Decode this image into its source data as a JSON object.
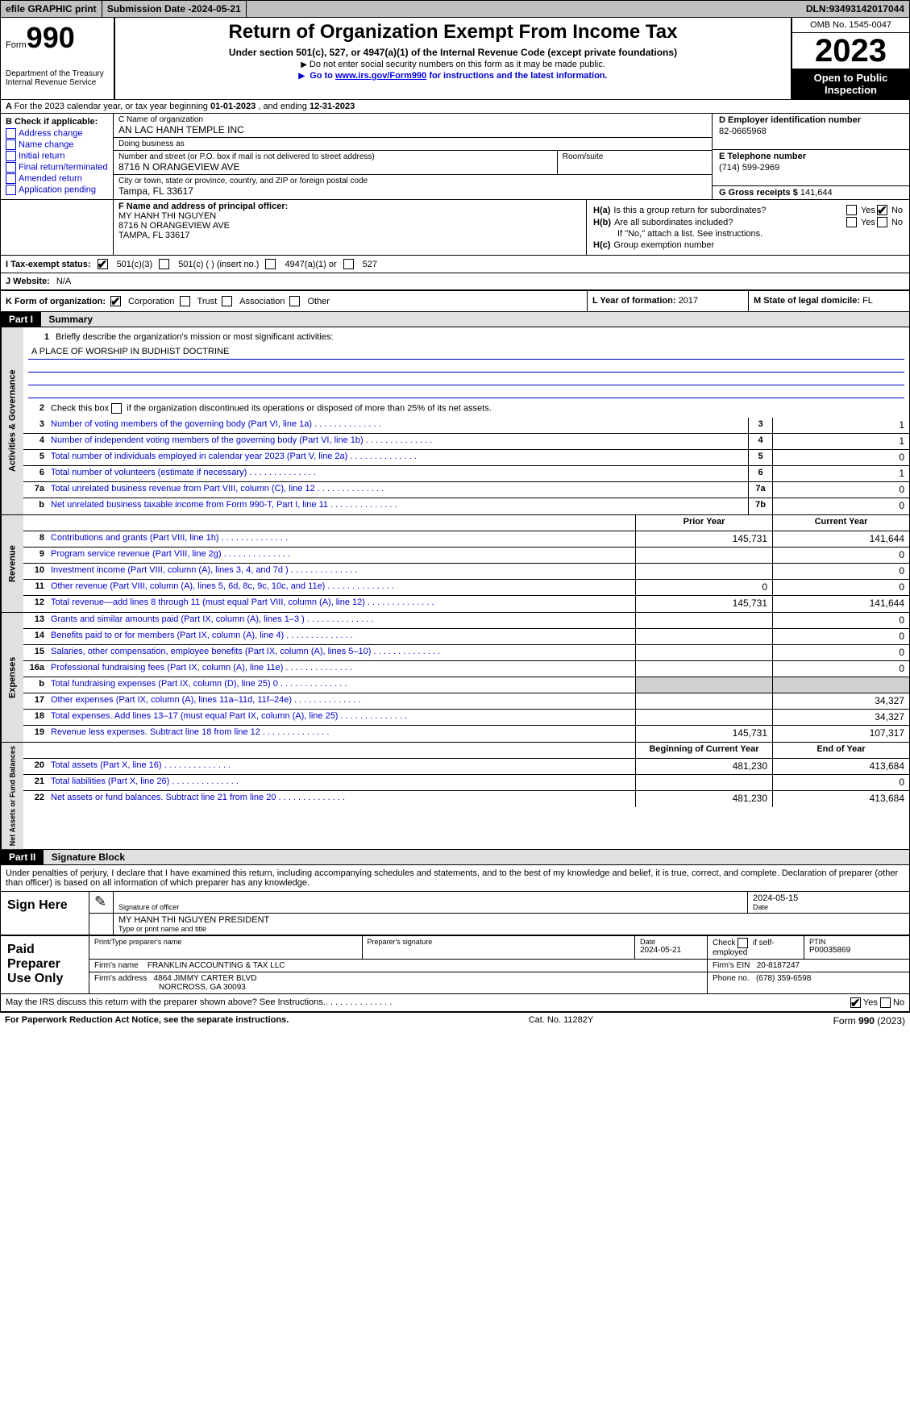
{
  "topbar": {
    "efile": "efile GRAPHIC print",
    "sub_date_label": "Submission Date - ",
    "sub_date": "2024-05-21",
    "dln_label": "DLN: ",
    "dln": "93493142017044"
  },
  "header": {
    "form_word": "Form",
    "form_num": "990",
    "dept": "Department of the Treasury\nInternal Revenue Service",
    "title": "Return of Organization Exempt From Income Tax",
    "sub1": "Under section 501(c), 527, or 4947(a)(1) of the Internal Revenue Code (except private foundations)",
    "sub2": "Do not enter social security numbers on this form as it may be made public.",
    "sub3_pre": "Go to ",
    "sub3_link": "www.irs.gov/Form990",
    "sub3_post": " for instructions and the latest information.",
    "omb": "OMB No. 1545-0047",
    "year": "2023",
    "open": "Open to Public Inspection"
  },
  "row_a": {
    "label": "A",
    "text": "For the 2023 calendar year, or tax year beginning ",
    "begin": "01-01-2023",
    "mid": "   , and ending ",
    "end": "12-31-2023"
  },
  "section_b": {
    "label": "B Check if applicable:",
    "opts": [
      "Address change",
      "Name change",
      "Initial return",
      "Final return/terminated",
      "Amended return",
      "Application pending"
    ]
  },
  "section_c": {
    "name_lbl": "C Name of organization",
    "name": "AN LAC HANH TEMPLE INC",
    "dba_lbl": "Doing business as",
    "dba": "",
    "addr_lbl": "Number and street (or P.O. box if mail is not delivered to street address)",
    "addr": "8716 N ORANGEVIEW AVE",
    "room_lbl": "Room/suite",
    "room": "",
    "city_lbl": "City or town, state or province, country, and ZIP or foreign postal code",
    "city": "Tampa, FL  33617"
  },
  "section_d": {
    "ein_lbl": "D Employer identification number",
    "ein": "82-0665968",
    "tel_lbl": "E Telephone number",
    "tel": "(714) 599-2969",
    "gross_lbl": "G Gross receipts $ ",
    "gross": "141,644"
  },
  "section_f": {
    "lbl": "F  Name and address of principal officer:",
    "name": "MY HANH THI NGUYEN",
    "addr1": "8716 N ORANGEVIEW AVE",
    "addr2": "TAMPA, FL  33617"
  },
  "section_h": {
    "ha_lbl": "H(a)",
    "ha_text": "Is this a group return for subordinates?",
    "hb_lbl": "H(b)",
    "hb_text": "Are all subordinates included?",
    "hb_note": "If \"No,\" attach a list. See instructions.",
    "hc_lbl": "H(c)",
    "hc_text": "Group exemption number",
    "yes": "Yes",
    "no": "No"
  },
  "row_i": {
    "lbl": "I  Tax-exempt status:",
    "o1": "501(c)(3)",
    "o2": "501(c) (  ) (insert no.)",
    "o3": "4947(a)(1) or",
    "o4": "527"
  },
  "row_j": {
    "lbl": "J  Website:",
    "val": "N/A"
  },
  "row_k": {
    "lbl": "K Form of organization:",
    "o1": "Corporation",
    "o2": "Trust",
    "o3": "Association",
    "o4": "Other"
  },
  "row_l": {
    "lbl": "L Year of formation: ",
    "val": "2017"
  },
  "row_m": {
    "lbl": "M State of legal domicile: ",
    "val": "FL"
  },
  "part1": {
    "header": "Part I",
    "title": "Summary",
    "q1_lbl": "1",
    "q1": "Briefly describe the organization's mission or most significant activities:",
    "q1_val": "A PLACE OF WORSHIP IN BUDHIST DOCTRINE",
    "q2_lbl": "2",
    "q2": "Check this box       if the organization discontinued its operations or disposed of more than 25% of its net assets.",
    "rows_gov": [
      {
        "n": "3",
        "d": "Number of voting members of the governing body (Part VI, line 1a)",
        "box": "3",
        "v": "1"
      },
      {
        "n": "4",
        "d": "Number of independent voting members of the governing body (Part VI, line 1b)",
        "box": "4",
        "v": "1"
      },
      {
        "n": "5",
        "d": "Total number of individuals employed in calendar year 2023 (Part V, line 2a)",
        "box": "5",
        "v": "0"
      },
      {
        "n": "6",
        "d": "Total number of volunteers (estimate if necessary)",
        "box": "6",
        "v": "1"
      },
      {
        "n": "7a",
        "d": "Total unrelated business revenue from Part VIII, column (C), line 12",
        "box": "7a",
        "v": "0"
      },
      {
        "n": "b",
        "d": "Net unrelated business taxable income from Form 990-T, Part I, line 11",
        "box": "7b",
        "v": "0"
      }
    ],
    "col_prior": "Prior Year",
    "col_current": "Current Year",
    "rows_rev": [
      {
        "n": "8",
        "d": "Contributions and grants (Part VIII, line 1h)",
        "p": "145,731",
        "c": "141,644"
      },
      {
        "n": "9",
        "d": "Program service revenue (Part VIII, line 2g)",
        "p": "",
        "c": "0"
      },
      {
        "n": "10",
        "d": "Investment income (Part VIII, column (A), lines 3, 4, and 7d )",
        "p": "",
        "c": "0"
      },
      {
        "n": "11",
        "d": "Other revenue (Part VIII, column (A), lines 5, 6d, 8c, 9c, 10c, and 11e)",
        "p": "0",
        "c": "0"
      },
      {
        "n": "12",
        "d": "Total revenue—add lines 8 through 11 (must equal Part VIII, column (A), line 12)",
        "p": "145,731",
        "c": "141,644"
      }
    ],
    "rows_exp": [
      {
        "n": "13",
        "d": "Grants and similar amounts paid (Part IX, column (A), lines 1–3 )",
        "p": "",
        "c": "0"
      },
      {
        "n": "14",
        "d": "Benefits paid to or for members (Part IX, column (A), line 4)",
        "p": "",
        "c": "0"
      },
      {
        "n": "15",
        "d": "Salaries, other compensation, employee benefits (Part IX, column (A), lines 5–10)",
        "p": "",
        "c": "0"
      },
      {
        "n": "16a",
        "d": "Professional fundraising fees (Part IX, column (A), line 11e)",
        "p": "",
        "c": "0"
      },
      {
        "n": "b",
        "d": "Total fundraising expenses (Part IX, column (D), line 25) 0",
        "p": "shade",
        "c": "shade"
      },
      {
        "n": "17",
        "d": "Other expenses (Part IX, column (A), lines 11a–11d, 11f–24e)",
        "p": "",
        "c": "34,327"
      },
      {
        "n": "18",
        "d": "Total expenses. Add lines 13–17 (must equal Part IX, column (A), line 25)",
        "p": "",
        "c": "34,327"
      },
      {
        "n": "19",
        "d": "Revenue less expenses. Subtract line 18 from line 12",
        "p": "145,731",
        "c": "107,317"
      }
    ],
    "col_begin": "Beginning of Current Year",
    "col_end": "End of Year",
    "rows_net": [
      {
        "n": "20",
        "d": "Total assets (Part X, line 16)",
        "p": "481,230",
        "c": "413,684"
      },
      {
        "n": "21",
        "d": "Total liabilities (Part X, line 26)",
        "p": "",
        "c": "0"
      },
      {
        "n": "22",
        "d": "Net assets or fund balances. Subtract line 21 from line 20",
        "p": "481,230",
        "c": "413,684"
      }
    ],
    "vtab_gov": "Activities & Governance",
    "vtab_rev": "Revenue",
    "vtab_exp": "Expenses",
    "vtab_net": "Net Assets or Fund Balances"
  },
  "part2": {
    "header": "Part II",
    "title": "Signature Block",
    "decl": "Under penalties of perjury, I declare that I have examined this return, including accompanying schedules and statements, and to the best of my knowledge and belief, it is true, correct, and complete. Declaration of preparer (other than officer) is based on all information of which preparer has any knowledge."
  },
  "sign": {
    "label": "Sign Here",
    "sig_lbl": "Signature of officer",
    "date_lbl": "Date",
    "date": "2024-05-15",
    "name": "MY HANH THI NGUYEN  PRESIDENT",
    "name_lbl": "Type or print name and title"
  },
  "prep": {
    "label": "Paid Preparer Use Only",
    "name_lbl": "Print/Type preparer's name",
    "name": "",
    "sig_lbl": "Preparer's signature",
    "date_lbl": "Date",
    "date": "2024-05-21",
    "self_lbl": "Check         if self-employed",
    "ptin_lbl": "PTIN",
    "ptin": "P00035869",
    "firm_name_lbl": "Firm's name",
    "firm_name": "FRANKLIN ACCOUNTING & TAX LLC",
    "firm_ein_lbl": "Firm's EIN",
    "firm_ein": "20-8187247",
    "firm_addr_lbl": "Firm's address",
    "firm_addr1": "4864 JIMMY CARTER BLVD",
    "firm_addr2": "NORCROSS, GA  30093",
    "phone_lbl": "Phone no.",
    "phone": "(678) 359-6598"
  },
  "discuss": {
    "text": "May the IRS discuss this return with the preparer shown above? See Instructions.",
    "yes": "Yes",
    "no": "No"
  },
  "footer": {
    "left": "For Paperwork Reduction Act Notice, see the separate instructions.",
    "mid": "Cat. No. 11282Y",
    "right_pre": "Form ",
    "right_form": "990",
    "right_post": " (2023)"
  },
  "colors": {
    "link": "#0000cc",
    "shade": "#d0d0d0",
    "header_bg": "#e0e0e0"
  }
}
